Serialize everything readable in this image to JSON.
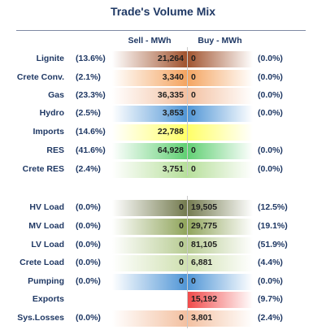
{
  "title": "Trade's Volume Mix",
  "headers": {
    "sell": "Sell - MWh",
    "buy": "Buy - MWh"
  },
  "sections": [
    {
      "rows": [
        {
          "label": "Lignite",
          "sell_pct": "(13.6%)",
          "sell": "21,264",
          "buy": "0",
          "buy_pct": "(0.0%)"
        },
        {
          "label": "Crete Conv.",
          "sell_pct": "(2.1%)",
          "sell": "3,340",
          "buy": "0",
          "buy_pct": "(0.0%)"
        },
        {
          "label": "Gas",
          "sell_pct": "(23.3%)",
          "sell": "36,335",
          "buy": "0",
          "buy_pct": "(0.0%)"
        },
        {
          "label": "Hydro",
          "sell_pct": "(2.5%)",
          "sell": "3,853",
          "buy": "0",
          "buy_pct": "(0.0%)"
        },
        {
          "label": "Imports",
          "sell_pct": "(14.6%)",
          "sell": "22,788",
          "buy": "",
          "buy_pct": ""
        },
        {
          "label": "RES",
          "sell_pct": "(41.6%)",
          "sell": "64,928",
          "buy": "0",
          "buy_pct": "(0.0%)"
        },
        {
          "label": "Crete RES",
          "sell_pct": "(2.4%)",
          "sell": "3,751",
          "buy": "0",
          "buy_pct": "(0.0%)"
        }
      ]
    },
    {
      "rows": [
        {
          "label": "HV Load",
          "sell_pct": "(0.0%)",
          "sell": "0",
          "buy": "19,505",
          "buy_pct": "(12.5%)"
        },
        {
          "label": "MV Load",
          "sell_pct": "(0.0%)",
          "sell": "0",
          "buy": "29,775",
          "buy_pct": "(19.1%)"
        },
        {
          "label": "LV Load",
          "sell_pct": "(0.0%)",
          "sell": "0",
          "buy": "81,105",
          "buy_pct": "(51.9%)"
        },
        {
          "label": "Crete Load",
          "sell_pct": "(0.0%)",
          "sell": "0",
          "buy": "6,881",
          "buy_pct": "(4.4%)"
        },
        {
          "label": "Pumping",
          "sell_pct": "(0.0%)",
          "sell": "0",
          "buy": "0",
          "buy_pct": "(0.0%)"
        },
        {
          "label": "Exports",
          "sell_pct": "",
          "sell": "",
          "buy": "15,192",
          "buy_pct": "(9.7%)"
        },
        {
          "label": "Sys.Losses",
          "sell_pct": "(0.0%)",
          "sell": "0",
          "buy": "3,801",
          "buy_pct": "(2.4%)"
        }
      ]
    }
  ],
  "colors": {
    "title": "#1f3864",
    "lignite": "#a0522d",
    "crete_conv": "#f4a460",
    "gas": "#f3c0a0",
    "hydro": "#4f95d6",
    "imports": "#ffff66",
    "res": "#5fcf72",
    "crete_res": "#b6df9a",
    "hv_load": "#737a4e",
    "mv_load": "#8fa45a",
    "lv_load": "#b8cc93",
    "crete_load": "#cfe0b0",
    "pumping": "#4f95d6",
    "exports": "#f04848",
    "sys_losses": "#f3c0a0"
  }
}
